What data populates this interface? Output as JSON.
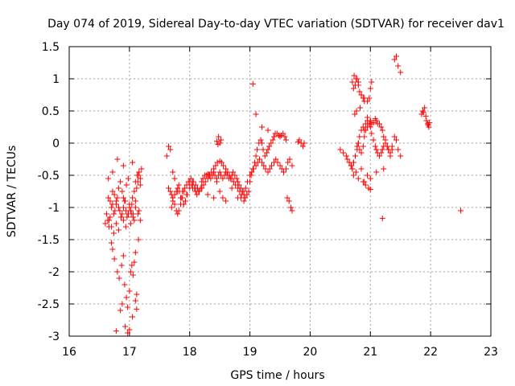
{
  "chart_data": {
    "type": "scatter",
    "title": "Day 074 of 2019, Sidereal Day-to-day VTEC variation (SDTVAR) for receiver dav1",
    "xlabel": "GPS time / hours",
    "ylabel": "SDTVAR / TECUs",
    "xlim": [
      16,
      23
    ],
    "ylim": [
      -3,
      1.5
    ],
    "xticks": [
      "16",
      "17",
      "18",
      "19",
      "20",
      "21",
      "22",
      "23"
    ],
    "yticks": [
      "1.5",
      "1",
      "0.5",
      "0",
      "-0.5",
      "-1",
      "-1.5",
      "-2",
      "-2.5",
      "-3"
    ],
    "grid": true,
    "marker": "+",
    "color": "#ff0000",
    "series": [
      {
        "name": "dav1",
        "x": [
          16.6,
          16.62,
          16.64,
          16.66,
          16.68,
          16.7,
          16.72,
          16.74,
          16.76,
          16.78,
          16.8,
          16.82,
          16.84,
          16.86,
          16.88,
          16.9,
          16.92,
          16.94,
          16.96,
          16.98,
          17.0,
          17.02,
          17.04,
          17.06,
          17.08,
          17.1,
          17.12,
          17.14,
          17.16,
          17.18,
          17.2,
          16.65,
          16.68,
          16.72,
          16.75,
          16.78,
          16.82,
          16.85,
          16.88,
          16.9,
          16.93,
          16.95,
          16.98,
          17.0,
          17.03,
          17.05,
          17.08,
          17.1,
          17.13,
          17.16,
          17.18,
          16.66,
          16.7,
          16.74,
          16.78,
          16.82,
          16.86,
          16.9,
          16.94,
          16.98,
          17.02,
          17.06,
          17.1,
          17.14,
          17.18,
          16.7,
          16.72,
          16.75,
          16.8,
          16.83,
          16.87,
          16.9,
          16.92,
          16.95,
          16.97,
          17.0,
          17.02,
          17.04,
          17.06,
          17.08,
          17.1,
          17.12,
          17.15,
          16.78,
          16.85,
          16.88,
          16.93,
          16.97,
          17.0,
          17.05,
          17.1,
          17.12,
          16.65,
          16.72,
          16.8,
          16.9,
          17.05,
          17.15,
          17.65,
          17.68,
          17.7,
          17.72,
          17.75,
          17.78,
          17.8,
          17.82,
          17.85,
          17.88,
          17.9,
          17.92,
          17.95,
          17.98,
          18.0,
          18.02,
          18.05,
          18.08,
          18.1,
          18.12,
          18.15,
          18.18,
          18.2,
          18.22,
          18.25,
          18.28,
          18.3,
          18.32,
          18.35,
          18.38,
          18.4,
          18.42,
          18.45,
          18.48,
          18.5,
          18.52,
          18.55,
          18.58,
          18.6,
          18.62,
          18.65,
          18.68,
          18.7,
          18.72,
          18.75,
          18.78,
          18.8,
          18.82,
          18.85,
          18.88,
          18.9,
          18.92,
          18.95,
          18.98,
          19.0,
          19.02,
          19.05,
          19.08,
          19.1,
          19.12,
          19.15,
          19.18,
          19.2,
          19.22,
          19.25,
          19.28,
          19.3,
          19.32,
          19.35,
          19.38,
          19.4,
          19.42,
          19.45,
          19.48,
          19.5,
          19.52,
          19.55,
          19.58,
          19.6,
          19.62,
          19.65,
          19.68,
          19.7,
          17.7,
          17.72,
          17.75,
          17.78,
          17.8,
          17.83,
          17.86,
          17.9,
          17.93,
          17.96,
          18.0,
          18.03,
          18.06,
          18.1,
          18.13,
          18.16,
          18.2,
          18.23,
          18.26,
          18.3,
          18.33,
          18.36,
          18.4,
          18.43,
          18.46,
          18.5,
          18.53,
          18.56,
          18.6,
          18.63,
          18.66,
          18.7,
          18.73,
          18.76,
          18.8,
          18.83,
          18.86,
          18.9,
          18.93,
          18.96,
          19.0,
          19.03,
          19.06,
          19.1,
          19.13,
          19.16,
          19.2,
          19.23,
          19.26,
          19.3,
          19.33,
          19.36,
          19.4,
          19.43,
          19.46,
          19.5,
          19.53,
          19.56,
          19.6,
          19.63,
          19.66,
          19.7,
          17.62,
          17.65,
          17.68,
          17.72,
          17.75,
          17.8,
          17.82,
          17.85,
          17.88,
          17.9,
          17.95,
          18.05,
          18.1,
          18.2,
          18.3,
          18.4,
          18.45,
          18.5,
          18.55,
          18.6,
          18.7,
          18.8,
          18.85,
          18.9,
          18.95,
          19.05,
          19.1,
          19.2,
          19.3,
          18.48,
          18.5,
          18.45,
          18.47,
          18.52,
          19.8,
          19.82,
          19.85,
          19.88,
          19.9,
          20.5,
          20.55,
          20.6,
          20.62,
          20.65,
          20.68,
          20.7,
          20.72,
          20.75,
          20.78,
          20.8,
          20.82,
          20.85,
          20.88,
          20.9,
          20.92,
          20.95,
          20.98,
          21.0,
          21.02,
          21.05,
          21.08,
          21.1,
          21.12,
          21.15,
          21.18,
          21.2,
          21.22,
          21.25,
          21.28,
          21.3,
          21.33,
          21.36,
          21.4,
          21.43,
          21.46,
          21.5,
          20.65,
          20.68,
          20.7,
          20.72,
          20.75,
          20.78,
          20.8,
          20.82,
          20.85,
          20.88,
          20.9,
          20.92,
          20.95,
          20.98,
          21.0,
          21.02,
          21.05,
          21.08,
          21.1,
          21.12,
          21.15,
          21.18,
          21.2,
          21.22,
          21.25,
          21.28,
          21.3,
          21.33,
          21.36,
          21.4,
          21.43,
          21.46,
          21.5,
          20.7,
          20.72,
          20.75,
          20.78,
          20.8,
          20.82,
          20.85,
          20.88,
          20.9,
          20.95,
          20.98,
          21.0,
          21.02,
          20.73,
          20.76,
          20.8,
          20.85,
          20.9,
          20.95,
          21.0,
          20.74,
          20.77,
          20.83,
          20.88,
          20.92,
          20.97,
          21.0,
          20.72,
          20.76,
          20.8,
          20.85,
          20.9,
          20.95,
          21.0,
          21.1,
          21.2,
          21.22,
          21.85,
          21.87,
          21.88,
          21.9,
          21.92,
          21.95,
          21.97,
          21.93,
          21.96,
          21.98,
          22.5
        ],
        "y": [
          -1.25,
          -1.1,
          -1.2,
          -1.3,
          -1.15,
          -1.0,
          -0.95,
          -1.1,
          -1.05,
          -0.9,
          -0.85,
          -1.0,
          -1.05,
          -1.15,
          -1.1,
          -1.0,
          -0.9,
          -1.05,
          -1.15,
          -1.1,
          -1.0,
          -1.05,
          -0.95,
          -1.1,
          -1.2,
          -0.9,
          -0.7,
          -0.6,
          -1.05,
          -0.65,
          -0.4,
          -0.85,
          -0.9,
          -0.75,
          -0.8,
          -0.95,
          -0.7,
          -0.6,
          -0.75,
          -0.85,
          -0.9,
          -0.65,
          -0.55,
          -0.95,
          -1.1,
          -0.85,
          -0.75,
          -0.6,
          -0.5,
          -0.45,
          -0.55,
          -1.2,
          -1.3,
          -1.4,
          -1.25,
          -1.35,
          -1.15,
          -1.2,
          -1.3,
          -1.1,
          -1.25,
          -1.15,
          -1.0,
          -1.1,
          -1.2,
          -1.55,
          -1.65,
          -1.8,
          -2.0,
          -2.1,
          -1.9,
          -1.75,
          -2.2,
          -2.4,
          -2.55,
          -2.3,
          -2.0,
          -1.9,
          -2.05,
          -1.85,
          -1.7,
          -2.35,
          -1.5,
          -2.92,
          -2.6,
          -2.5,
          -2.85,
          -2.95,
          -2.9,
          -2.7,
          -2.45,
          -2.58,
          -0.55,
          -0.45,
          -0.25,
          -0.35,
          -0.3,
          -0.5,
          -0.7,
          -0.75,
          -0.8,
          -0.85,
          -0.95,
          -1.05,
          -1.1,
          -1.05,
          -0.95,
          -0.85,
          -0.75,
          -0.7,
          -0.65,
          -0.6,
          -0.6,
          -0.55,
          -0.6,
          -0.7,
          -0.75,
          -0.8,
          -0.75,
          -0.7,
          -0.6,
          -0.55,
          -0.5,
          -0.5,
          -0.48,
          -0.5,
          -0.55,
          -0.5,
          -0.45,
          -0.5,
          -0.55,
          -0.5,
          -0.45,
          -0.5,
          -0.55,
          -0.5,
          -0.45,
          -0.5,
          -0.55,
          -0.55,
          -0.5,
          -0.45,
          -0.5,
          -0.55,
          -0.6,
          -0.65,
          -0.7,
          -0.75,
          -0.8,
          -0.85,
          -0.8,
          -0.75,
          -0.6,
          -0.5,
          -0.4,
          -0.3,
          -0.2,
          -0.1,
          0.0,
          0.05,
          0.0,
          -0.1,
          -0.2,
          -0.15,
          -0.1,
          -0.05,
          0.0,
          0.05,
          0.1,
          0.15,
          0.15,
          0.12,
          0.1,
          0.12,
          0.15,
          0.1,
          0.05,
          -0.85,
          -0.9,
          -1.0,
          -1.05,
          -1.0,
          -0.9,
          -0.8,
          -0.75,
          -0.7,
          -0.75,
          -0.85,
          -0.95,
          -0.9,
          -0.8,
          -0.7,
          -0.65,
          -0.6,
          -0.65,
          -0.7,
          -0.75,
          -0.7,
          -0.65,
          -0.6,
          -0.55,
          -0.5,
          -0.45,
          -0.4,
          -0.35,
          -0.3,
          -0.28,
          -0.3,
          -0.35,
          -0.4,
          -0.45,
          -0.5,
          -0.55,
          -0.6,
          -0.65,
          -0.7,
          -0.75,
          -0.8,
          -0.75,
          -0.7,
          -0.6,
          -0.5,
          -0.45,
          -0.4,
          -0.35,
          -0.3,
          -0.25,
          -0.3,
          -0.35,
          -0.4,
          -0.45,
          -0.4,
          -0.35,
          -0.3,
          -0.25,
          -0.3,
          -0.35,
          -0.4,
          -0.45,
          -0.4,
          -0.3,
          -0.25,
          -0.35,
          -0.2,
          -0.05,
          -0.1,
          -0.45,
          -0.55,
          -0.75,
          -0.65,
          -0.85,
          -0.75,
          -0.95,
          -0.8,
          -0.7,
          -0.75,
          -0.7,
          -0.8,
          -0.85,
          -0.6,
          -0.75,
          -0.85,
          -0.9,
          -0.7,
          -0.85,
          -0.85,
          -0.9,
          -0.8,
          0.92,
          0.45,
          0.25,
          0.2,
          0.1,
          0.0,
          0.03,
          -0.02,
          0.05,
          0.02,
          0.05,
          0.0,
          -0.05,
          0.0,
          -0.1,
          -0.15,
          -0.2,
          -0.25,
          -0.3,
          -0.35,
          -0.4,
          -0.3,
          -0.2,
          -0.1,
          0.0,
          0.1,
          0.2,
          0.25,
          0.2,
          0.3,
          0.35,
          0.3,
          0.25,
          0.15,
          0.05,
          -0.05,
          -0.1,
          -0.15,
          -0.2,
          -0.15,
          -0.1,
          -0.05,
          0.0,
          -0.05,
          -0.1,
          -0.2,
          -0.1,
          0.1,
          0.05,
          -0.1,
          -0.2,
          -0.3,
          -0.35,
          -0.4,
          -0.3,
          -0.2,
          -0.05,
          0.0,
          -0.1,
          -0.15,
          -0.05,
          0.1,
          0.2,
          0.25,
          0.3,
          0.35,
          0.3,
          0.32,
          0.38,
          0.35,
          0.3,
          0.3,
          0.25,
          0.2,
          0.1,
          0.05,
          -0.05,
          -0.1,
          -0.15,
          -0.05,
          1.3,
          1.35,
          1.2,
          1.1,
          0.95,
          0.85,
          0.9,
          1.0,
          0.95,
          0.8,
          0.75,
          0.7,
          0.65,
          0.65,
          0.7,
          0.85,
          0.95,
          1.05,
          1.0,
          0.9,
          0.75,
          0.7,
          0.4,
          0.35,
          0.45,
          0.5,
          0.55,
          -0.6,
          -0.65,
          -0.7,
          -0.72,
          -0.5,
          -0.45,
          -0.55,
          -0.4,
          -0.6,
          -0.5,
          -0.55,
          -0.45,
          -1.17,
          -0.4,
          0.45,
          0.5,
          0.48,
          0.55,
          0.42,
          0.3,
          0.25,
          0.35,
          0.28,
          0.32,
          -1.05
        ]
      }
    ]
  }
}
